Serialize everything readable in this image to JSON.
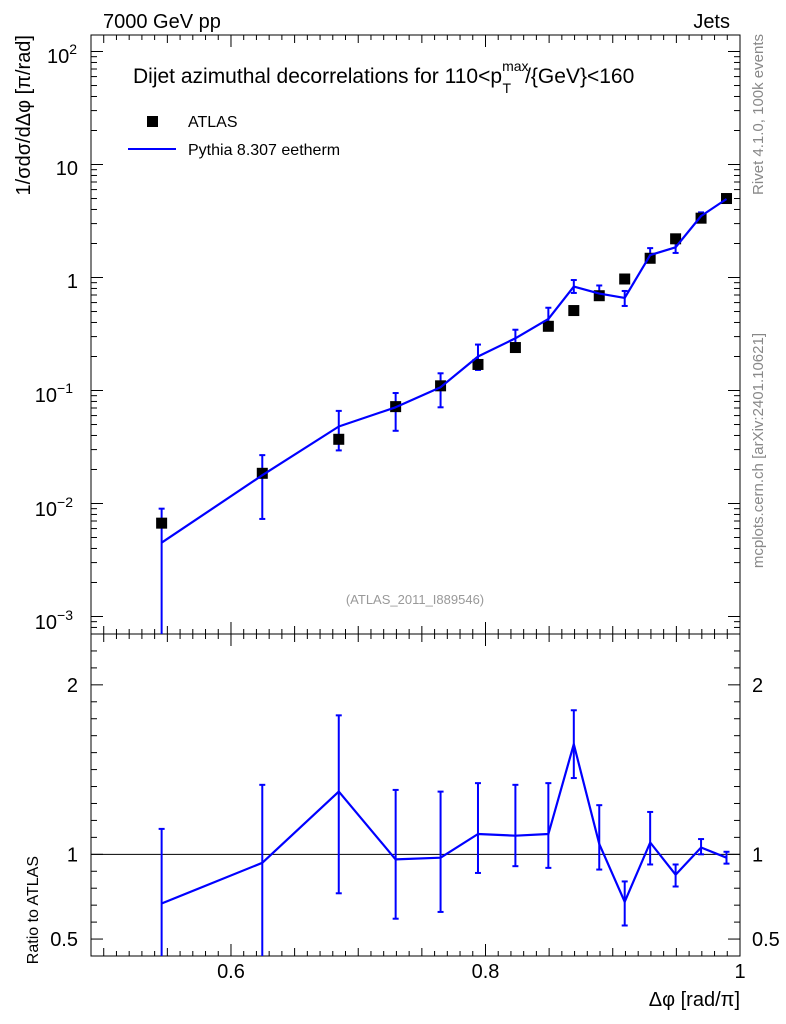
{
  "header": {
    "left": "7000 GeV pp",
    "right": "Jets",
    "side_top": "Rivet 4.1.0,  100k events",
    "side_bottom": "mcplots.cern.ch [arXiv:2401.10621]"
  },
  "chart_data": {
    "type": "line",
    "title": "Dijet azimuthal decorrelations for 110<p_T^max/{GeV}<160",
    "title_parts": {
      "pre": "Dijet azimuthal decorrelations for 110<p",
      "sup": "max",
      "sub": "T",
      "post": "/{GeV}<160"
    },
    "watermark": "(ATLAS_2011_I889546)",
    "xlabel": "Δφ [rad/π]",
    "ylabel": "1/σdσ/dΔφ [π/rad]",
    "ratio_ylabel": "Ratio to ATLAS",
    "xlim": [
      0.49,
      1.0
    ],
    "ylim": [
      0.0007,
      140
    ],
    "yscale": "log",
    "ratio_ylim": [
      0.4,
      2.3
    ],
    "x_ticks": [
      "0.6",
      "0.8",
      "1"
    ],
    "ratio_ticks": [
      "0.5",
      "1",
      "2"
    ],
    "legend": {
      "position": "top-left",
      "entries": [
        "ATLAS",
        "Pythia 8.307 eetherm"
      ]
    },
    "colors": {
      "data": "#000000",
      "mc": "#0000ff"
    },
    "x": [
      0.5455,
      0.6246,
      0.6847,
      0.7294,
      0.7647,
      0.7941,
      0.8235,
      0.8494,
      0.8694,
      0.8894,
      0.9094,
      0.9294,
      0.9494,
      0.9694,
      0.9894
    ],
    "series": [
      {
        "name": "ATLAS",
        "marker": "square",
        "values": [
          0.0067,
          0.0185,
          0.037,
          0.072,
          0.11,
          0.17,
          0.24,
          0.37,
          0.51,
          0.69,
          0.97,
          1.48,
          2.2,
          3.35,
          5.0
        ]
      },
      {
        "name": "Pythia 8.307 eetherm",
        "line": true,
        "values": [
          0.0045,
          0.0178,
          0.048,
          0.071,
          0.107,
          0.2,
          0.29,
          0.43,
          0.83,
          0.72,
          0.66,
          1.58,
          1.85,
          3.5,
          4.95
        ],
        "err_low": [
          0.0045,
          0.0105,
          0.0185,
          0.027,
          0.036,
          0.048,
          0.05,
          0.09,
          0.1,
          0.08,
          0.1,
          0.18,
          0.2,
          0.2,
          0.17
        ],
        "err_high": [
          0.0045,
          0.009,
          0.018,
          0.024,
          0.035,
          0.055,
          0.055,
          0.11,
          0.12,
          0.13,
          0.1,
          0.24,
          0.27,
          0.27,
          0.22
        ],
        "ratio": [
          0.71,
          0.95,
          1.37,
          0.97,
          0.98,
          1.12,
          1.11,
          1.12,
          1.65,
          1.06,
          0.72,
          1.07,
          0.88,
          1.04,
          0.98
        ],
        "ratio_low": [
          0.41,
          0.6,
          0.6,
          0.35,
          0.32,
          0.23,
          0.18,
          0.2,
          0.2,
          0.15,
          0.14,
          0.13,
          0.07,
          0.04,
          0.035
        ],
        "ratio_high": [
          0.44,
          0.46,
          0.45,
          0.41,
          0.39,
          0.3,
          0.3,
          0.3,
          0.2,
          0.23,
          0.12,
          0.18,
          0.06,
          0.05,
          0.035
        ]
      }
    ]
  }
}
